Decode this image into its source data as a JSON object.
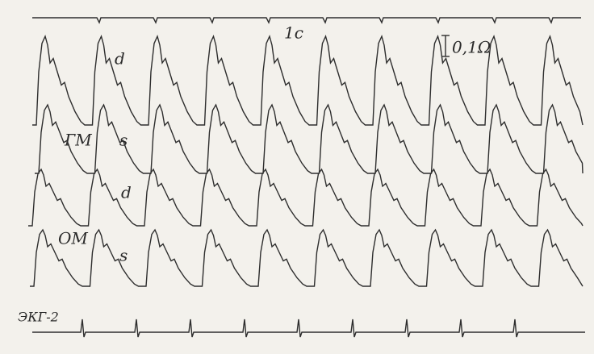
{
  "labels": {
    "time_mark": "1c",
    "scale": "0,1Ω",
    "trace_1": "d",
    "group_1": "ГМ",
    "trace_2": "s",
    "trace_3": "d",
    "group_2": "ОМ",
    "trace_4": "s",
    "ecg": "ЭКГ-2"
  }
}
